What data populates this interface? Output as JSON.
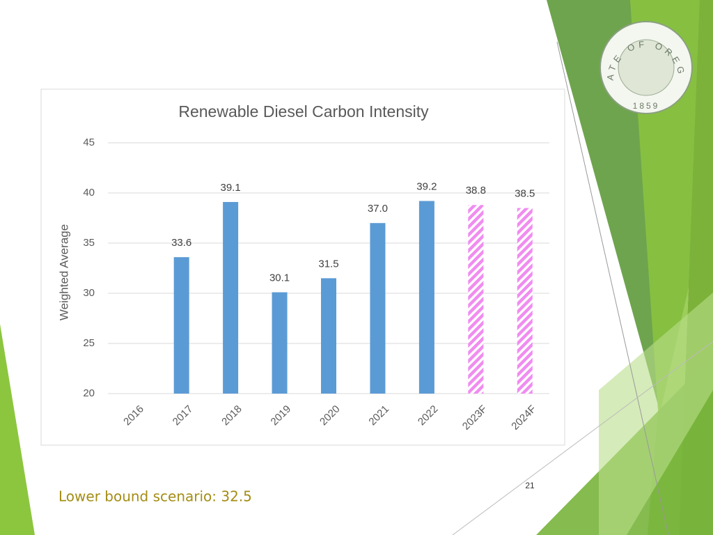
{
  "chart_data": {
    "type": "bar",
    "title": "Renewable Diesel Carbon Intensity",
    "y_label": "Weighted Average",
    "categories": [
      "2016",
      "2017",
      "2018",
      "2019",
      "2020",
      "2021",
      "2022",
      "2023F",
      "2024F"
    ],
    "values": [
      null,
      33.6,
      39.1,
      30.1,
      31.5,
      37.0,
      39.2,
      38.8,
      38.5
    ],
    "value_labels": [
      null,
      "33.6",
      "39.1",
      "30.1",
      "31.5",
      "37.0",
      "39.2",
      "38.8",
      "38.5"
    ],
    "colors": [
      "#5b9bd5",
      "#5b9bd5",
      "#5b9bd5",
      "#5b9bd5",
      "#5b9bd5",
      "#5b9bd5",
      "#5b9bd5",
      "#f08cf0",
      "#f08cf0"
    ],
    "bar_styles": [
      "solid",
      "solid",
      "solid",
      "solid",
      "solid",
      "solid",
      "solid",
      "hatched",
      "hatched"
    ],
    "ylim": [
      20,
      45
    ],
    "yticks": [
      20,
      25,
      30,
      35,
      40,
      45
    ],
    "grid": true
  },
  "slide": {
    "note": "Lower bound scenario: 32.5",
    "page_number": "21",
    "seal_text": "STATE OF OREGON",
    "seal_year": "1859"
  }
}
